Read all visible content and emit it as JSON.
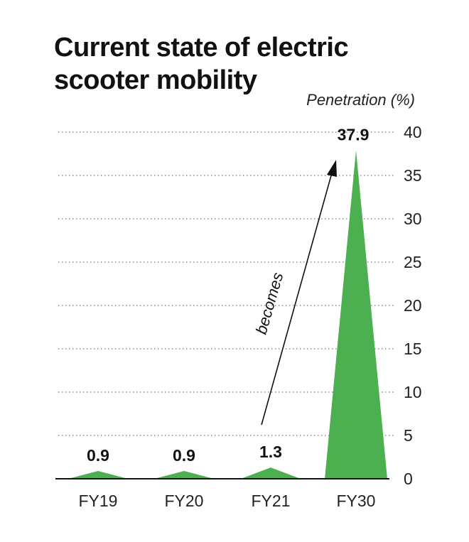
{
  "title_line1": "Current state of electric",
  "title_line2": "scooter mobility",
  "chart_data": {
    "type": "area",
    "title": "Current state of electric scooter mobility",
    "ylabel": "Penetration (%)",
    "categories": [
      "FY19",
      "FY20",
      "FY21",
      "FY30"
    ],
    "values": [
      0.9,
      0.9,
      1.3,
      37.9
    ],
    "value_labels": [
      "0.9",
      "0.9",
      "1.3",
      "37.9"
    ],
    "ylim": [
      0,
      40
    ],
    "yticks": [
      0,
      5,
      10,
      15,
      20,
      25,
      30,
      35,
      40
    ],
    "grid": true,
    "annotation": "becomes",
    "color": "#4caf50"
  }
}
